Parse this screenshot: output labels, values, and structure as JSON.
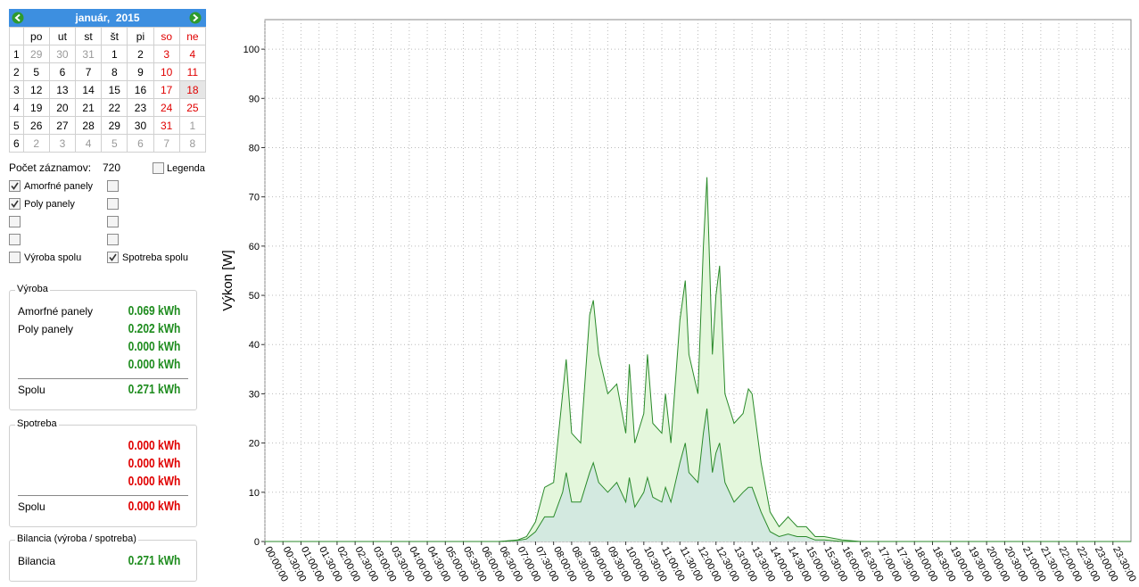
{
  "calendar": {
    "title": "január,  2015",
    "selected": "18",
    "weekdays": [
      "po",
      "ut",
      "st",
      "št",
      "pi",
      "so",
      "ne"
    ],
    "weeks": [
      {
        "number": "1",
        "days": [
          "29",
          "30",
          "31",
          "1",
          "2",
          "3",
          "4"
        ]
      },
      {
        "number": "2",
        "days": [
          "5",
          "6",
          "7",
          "8",
          "9",
          "10",
          "11"
        ]
      },
      {
        "number": "3",
        "days": [
          "12",
          "13",
          "14",
          "15",
          "16",
          "17",
          "18"
        ]
      },
      {
        "number": "4",
        "days": [
          "19",
          "20",
          "21",
          "22",
          "23",
          "24",
          "25"
        ]
      },
      {
        "number": "5",
        "days": [
          "26",
          "27",
          "28",
          "29",
          "30",
          "31",
          "1"
        ]
      },
      {
        "number": "6",
        "days": [
          "2",
          "3",
          "4",
          "5",
          "6",
          "7",
          "8"
        ]
      }
    ]
  },
  "records": {
    "label": "Počet záznamov:",
    "value": "720"
  },
  "legend_toggle": {
    "label": "Legenda",
    "checked": false
  },
  "checkboxes": [
    {
      "label": "Amorfné panely",
      "checked": true
    },
    {
      "checked": false
    },
    {
      "label": "Poly panely",
      "checked": true
    },
    {
      "checked": false
    },
    {
      "checked": false
    },
    {
      "checked": false
    },
    {
      "checked": false
    },
    {
      "checked": false
    },
    {
      "label": "Výroba spolu",
      "checked": false
    },
    {
      "label": "Spotreba spolu",
      "checked": true
    }
  ],
  "production": {
    "title": "Výroba",
    "rows": [
      {
        "label": "Amorfné panely",
        "value": "0.069 kWh"
      },
      {
        "label": "Poly panely",
        "value": "0.202 kWh"
      },
      {
        "value": "0.000 kWh"
      },
      {
        "value": "0.000 kWh"
      }
    ],
    "total_label": "Spolu",
    "total": "0.271 kWh"
  },
  "consumption": {
    "title": "Spotreba",
    "rows": [
      {
        "value": "0.000 kWh"
      },
      {
        "value": "0.000 kWh"
      },
      {
        "value": "0.000 kWh"
      }
    ],
    "total_label": "Spolu",
    "total": "0.000 kWh"
  },
  "balance": {
    "title": "Bilancia (výroba / spotreba)",
    "label": "Bilancia",
    "value": "0.271 kWh"
  },
  "chart_data": {
    "type": "area",
    "y_label": "Výkon [W]",
    "grid": true,
    "xlim": [
      0,
      24
    ],
    "ylim": [
      0,
      106
    ],
    "yticks": [
      0,
      10,
      20,
      30,
      40,
      50,
      60,
      70,
      80,
      90,
      100
    ],
    "xticks": [
      {
        "value": 0,
        "label": "00:00:00"
      },
      {
        "value": 0.5,
        "label": "00:30:00"
      },
      {
        "value": 1,
        "label": "01:00:00"
      },
      {
        "value": 1.5,
        "label": "01:30:00"
      },
      {
        "value": 2,
        "label": "02:00:00"
      },
      {
        "value": 2.5,
        "label": "02:30:00"
      },
      {
        "value": 3,
        "label": "03:00:00"
      },
      {
        "value": 3.5,
        "label": "03:30:00"
      },
      {
        "value": 4,
        "label": "04:00:00"
      },
      {
        "value": 4.5,
        "label": "04:30:00"
      },
      {
        "value": 5,
        "label": "05:00:00"
      },
      {
        "value": 5.5,
        "label": "05:30:00"
      },
      {
        "value": 6,
        "label": "06:00:00"
      },
      {
        "value": 6.5,
        "label": "06:30:00"
      },
      {
        "value": 7,
        "label": "07:00:00"
      },
      {
        "value": 7.5,
        "label": "07:30:00"
      },
      {
        "value": 8,
        "label": "08:00:00"
      },
      {
        "value": 8.5,
        "label": "08:30:00"
      },
      {
        "value": 9,
        "label": "09:00:00"
      },
      {
        "value": 9.5,
        "label": "09:30:00"
      },
      {
        "value": 10,
        "label": "10:00:00"
      },
      {
        "value": 10.5,
        "label": "10:30:00"
      },
      {
        "value": 11,
        "label": "11:00:00"
      },
      {
        "value": 11.5,
        "label": "11:30:00"
      },
      {
        "value": 12,
        "label": "12:00:00"
      },
      {
        "value": 12.5,
        "label": "12:30:00"
      },
      {
        "value": 13,
        "label": "13:00:00"
      },
      {
        "value": 13.5,
        "label": "13:30:00"
      },
      {
        "value": 14,
        "label": "14:00:00"
      },
      {
        "value": 14.5,
        "label": "14:30:00"
      },
      {
        "value": 15,
        "label": "15:00:00"
      },
      {
        "value": 15.5,
        "label": "15:30:00"
      },
      {
        "value": 16,
        "label": "16:00:00"
      },
      {
        "value": 16.5,
        "label": "16:30:00"
      },
      {
        "value": 17,
        "label": "17:00:00"
      },
      {
        "value": 17.5,
        "label": "17:30:00"
      },
      {
        "value": 18,
        "label": "18:00:00"
      },
      {
        "value": 18.5,
        "label": "18:30:00"
      },
      {
        "value": 19,
        "label": "19:00:00"
      },
      {
        "value": 19.5,
        "label": "19:30:00"
      },
      {
        "value": 20,
        "label": "20:00:00"
      },
      {
        "value": 20.5,
        "label": "20:30:00"
      },
      {
        "value": 21,
        "label": "21:00:00"
      },
      {
        "value": 21.5,
        "label": "21:30:00"
      },
      {
        "value": 22,
        "label": "22:00:00"
      },
      {
        "value": 22.5,
        "label": "22:30:00"
      },
      {
        "value": 23,
        "label": "23:00:00"
      },
      {
        "value": 23.5,
        "label": "23:30:00"
      }
    ],
    "x": [
      0,
      6.5,
      7,
      7.25,
      7.5,
      7.75,
      8,
      8.25,
      8.35,
      8.5,
      8.75,
      9,
      9.1,
      9.25,
      9.5,
      9.75,
      10,
      10.1,
      10.25,
      10.5,
      10.6,
      10.75,
      11,
      11.1,
      11.25,
      11.5,
      11.65,
      11.75,
      12,
      12.15,
      12.25,
      12.4,
      12.5,
      12.6,
      12.75,
      13,
      13.25,
      13.4,
      13.5,
      13.75,
      14,
      14.25,
      14.5,
      14.75,
      15,
      15.25,
      15.5,
      16,
      16.5,
      24
    ],
    "series": [
      {
        "color": "#2a8a2a",
        "fill": "#e4f7dc",
        "values": [
          0,
          0,
          0.3,
          1,
          4,
          11,
          12,
          30,
          37,
          22,
          20,
          46,
          49,
          38,
          30,
          32,
          22,
          36,
          20,
          26,
          38,
          24,
          22,
          30,
          20,
          45,
          53,
          38,
          30,
          60,
          74,
          38,
          50,
          56,
          30,
          24,
          26,
          31,
          30,
          16,
          6,
          3,
          5,
          3,
          3,
          1,
          1,
          0.3,
          0,
          0
        ]
      },
      {
        "color": "#2a8a2a",
        "fill": "#d3e9e0",
        "values": [
          0,
          0,
          0.2,
          0.5,
          2,
          5,
          5,
          10,
          14,
          8,
          8,
          14,
          16,
          12,
          10,
          12,
          8,
          13,
          7,
          10,
          13,
          9,
          8,
          11,
          8,
          16,
          20,
          14,
          12,
          22,
          27,
          14,
          18,
          20,
          12,
          8,
          10,
          11,
          11,
          6,
          2,
          1,
          1.5,
          1,
          1,
          0.3,
          0.3,
          0,
          0,
          0
        ]
      }
    ]
  }
}
